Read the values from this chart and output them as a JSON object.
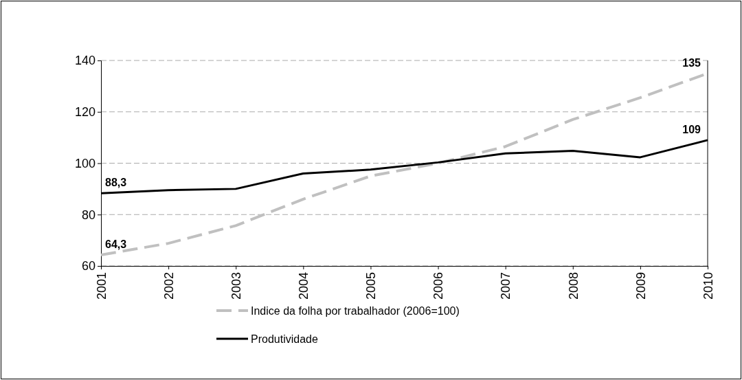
{
  "chart_data": {
    "type": "line",
    "categories": [
      "2001",
      "2002",
      "2003",
      "2004",
      "2005",
      "2006",
      "2007",
      "2008",
      "2009",
      "2010"
    ],
    "series": [
      {
        "name": "Indice da folha por trabalhador (2006=100)",
        "color": "#c0c0c0",
        "line_style": "dashed",
        "values": [
          64.3,
          68.8,
          75.7,
          86,
          95,
          100,
          106.5,
          117,
          125.5,
          135
        ],
        "value_labels": [
          "64,3",
          null,
          null,
          null,
          null,
          null,
          null,
          null,
          null,
          "135"
        ]
      },
      {
        "name": "Produtividade",
        "color": "#000000",
        "line_style": "solid",
        "values": [
          88.3,
          89.5,
          90,
          96,
          97.5,
          100.3,
          103.8,
          104.8,
          102.3,
          109
        ],
        "value_labels": [
          "88,3",
          null,
          null,
          null,
          null,
          null,
          null,
          null,
          null,
          "109"
        ]
      }
    ],
    "ylim": [
      60,
      140
    ],
    "yticks": [
      60,
      80,
      100,
      120,
      140
    ],
    "grid": "y",
    "legend": "bottom",
    "marker": "none"
  }
}
